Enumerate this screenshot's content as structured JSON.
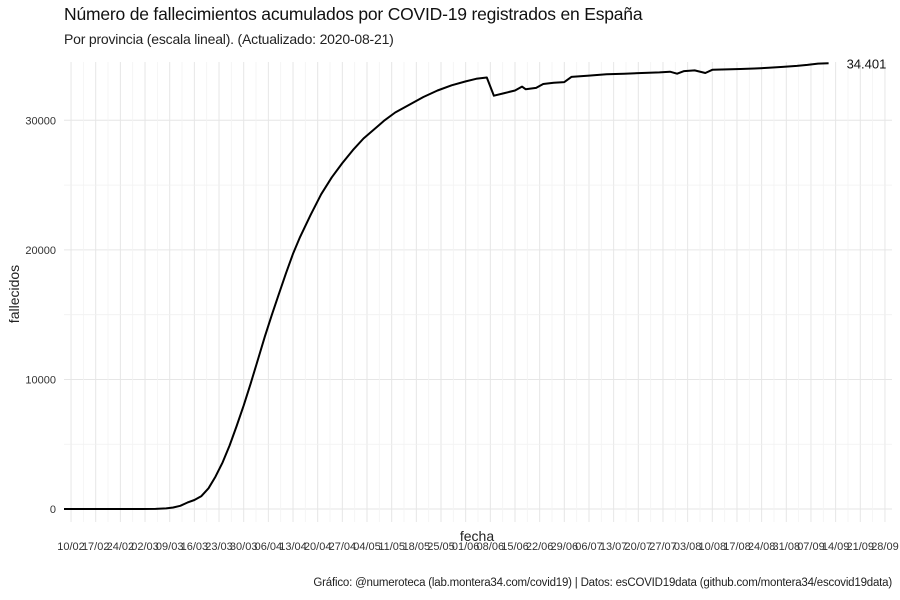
{
  "chart_data": {
    "type": "line",
    "title": "Número de fallecimientos acumulados por COVID-19 registrados en España",
    "subtitle": "Por provincia (escala lineal). (Actualizado: 2020-08-21)",
    "xlabel": "fecha",
    "ylabel": "fallecidos",
    "caption": "Gráfico: @numeroteca (lab.montera34.com/covid19) | Datos: esCOVID19data (github.com/montera34/escovid19data)",
    "end_label": "34.401",
    "xlim": [
      "2020-02-08",
      "2020-09-30"
    ],
    "ylim": [
      -1000,
      34500
    ],
    "y_ticks": [
      0,
      10000,
      20000,
      30000
    ],
    "x_tick_dates": [
      "2020-02-10",
      "2020-02-17",
      "2020-02-24",
      "2020-03-02",
      "2020-03-09",
      "2020-03-16",
      "2020-03-23",
      "2020-03-30",
      "2020-04-06",
      "2020-04-13",
      "2020-04-20",
      "2020-04-27",
      "2020-05-04",
      "2020-05-11",
      "2020-05-18",
      "2020-05-25",
      "2020-06-01",
      "2020-06-08",
      "2020-06-15",
      "2020-06-22",
      "2020-06-29",
      "2020-07-06",
      "2020-07-13",
      "2020-07-20",
      "2020-07-27",
      "2020-08-03",
      "2020-08-10",
      "2020-08-17",
      "2020-08-24",
      "2020-08-31",
      "2020-09-07",
      "2020-09-14",
      "2020-09-21",
      "2020-09-28"
    ],
    "x_tick_labels": [
      "10/02",
      "17/02",
      "24/02",
      "02/03",
      "09/03",
      "16/03",
      "23/03",
      "30/03",
      "06/04",
      "13/04",
      "20/04",
      "27/04",
      "04/05",
      "11/05",
      "18/05",
      "25/05",
      "01/06",
      "08/06",
      "15/06",
      "22/06",
      "29/06",
      "06/07",
      "13/07",
      "20/07",
      "27/07",
      "03/08",
      "10/08",
      "17/08",
      "24/08",
      "31/08",
      "07/09",
      "14/09",
      "21/09",
      "28/09"
    ],
    "grid": true,
    "series": [
      {
        "color": "#000000",
        "points": [
          [
            "2020-02-08",
            0
          ],
          [
            "2020-02-20",
            0
          ],
          [
            "2020-03-01",
            0
          ],
          [
            "2020-03-05",
            10
          ],
          [
            "2020-03-08",
            50
          ],
          [
            "2020-03-10",
            120
          ],
          [
            "2020-03-12",
            250
          ],
          [
            "2020-03-14",
            500
          ],
          [
            "2020-03-16",
            700
          ],
          [
            "2020-03-18",
            1000
          ],
          [
            "2020-03-20",
            1600
          ],
          [
            "2020-03-22",
            2500
          ],
          [
            "2020-03-24",
            3600
          ],
          [
            "2020-03-26",
            4900
          ],
          [
            "2020-03-28",
            6400
          ],
          [
            "2020-03-30",
            8000
          ],
          [
            "2020-04-01",
            9700
          ],
          [
            "2020-04-03",
            11500
          ],
          [
            "2020-04-05",
            13300
          ],
          [
            "2020-04-07",
            15000
          ],
          [
            "2020-04-09",
            16600
          ],
          [
            "2020-04-11",
            18200
          ],
          [
            "2020-04-13",
            19700
          ],
          [
            "2020-04-15",
            21000
          ],
          [
            "2020-04-18",
            22700
          ],
          [
            "2020-04-21",
            24300
          ],
          [
            "2020-04-24",
            25600
          ],
          [
            "2020-04-27",
            26700
          ],
          [
            "2020-04-30",
            27700
          ],
          [
            "2020-05-03",
            28600
          ],
          [
            "2020-05-06",
            29300
          ],
          [
            "2020-05-09",
            30000
          ],
          [
            "2020-05-12",
            30600
          ],
          [
            "2020-05-16",
            31200
          ],
          [
            "2020-05-20",
            31800
          ],
          [
            "2020-05-24",
            32300
          ],
          [
            "2020-05-28",
            32700
          ],
          [
            "2020-06-01",
            33000
          ],
          [
            "2020-06-04",
            33200
          ],
          [
            "2020-06-07",
            33300
          ],
          [
            "2020-06-09",
            31900
          ],
          [
            "2020-06-12",
            32100
          ],
          [
            "2020-06-15",
            32300
          ],
          [
            "2020-06-17",
            32600
          ],
          [
            "2020-06-18",
            32400
          ],
          [
            "2020-06-21",
            32500
          ],
          [
            "2020-06-23",
            32800
          ],
          [
            "2020-06-26",
            32900
          ],
          [
            "2020-06-29",
            32950
          ],
          [
            "2020-07-01",
            33350
          ],
          [
            "2020-07-06",
            33450
          ],
          [
            "2020-07-11",
            33550
          ],
          [
            "2020-07-16",
            33600
          ],
          [
            "2020-07-21",
            33650
          ],
          [
            "2020-07-26",
            33700
          ],
          [
            "2020-07-29",
            33750
          ],
          [
            "2020-07-31",
            33600
          ],
          [
            "2020-08-02",
            33800
          ],
          [
            "2020-08-05",
            33850
          ],
          [
            "2020-08-08",
            33650
          ],
          [
            "2020-08-10",
            33900
          ],
          [
            "2020-08-14",
            33930
          ],
          [
            "2020-08-18",
            33960
          ],
          [
            "2020-08-22",
            34000
          ],
          [
            "2020-08-26",
            34050
          ],
          [
            "2020-08-30",
            34120
          ],
          [
            "2020-09-03",
            34200
          ],
          [
            "2020-09-06",
            34280
          ],
          [
            "2020-09-09",
            34380
          ],
          [
            "2020-09-12",
            34401
          ]
        ]
      }
    ]
  }
}
